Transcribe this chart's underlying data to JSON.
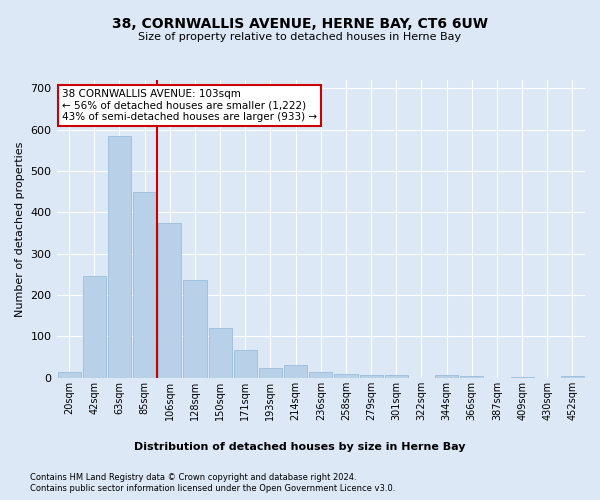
{
  "title": "38, CORNWALLIS AVENUE, HERNE BAY, CT6 6UW",
  "subtitle": "Size of property relative to detached houses in Herne Bay",
  "xlabel": "Distribution of detached houses by size in Herne Bay",
  "ylabel": "Number of detached properties",
  "footer1": "Contains HM Land Registry data © Crown copyright and database right 2024.",
  "footer2": "Contains public sector information licensed under the Open Government Licence v3.0.",
  "annotation_line1": "38 CORNWALLIS AVENUE: 103sqm",
  "annotation_line2": "← 56% of detached houses are smaller (1,222)",
  "annotation_line3": "43% of semi-detached houses are larger (933) →",
  "categories": [
    "20sqm",
    "42sqm",
    "63sqm",
    "85sqm",
    "106sqm",
    "128sqm",
    "150sqm",
    "171sqm",
    "193sqm",
    "214sqm",
    "236sqm",
    "258sqm",
    "279sqm",
    "301sqm",
    "322sqm",
    "344sqm",
    "366sqm",
    "387sqm",
    "409sqm",
    "430sqm",
    "452sqm"
  ],
  "values": [
    15,
    247,
    585,
    450,
    375,
    236,
    120,
    68,
    24,
    32,
    13,
    10,
    7,
    7,
    0,
    7,
    5,
    0,
    3,
    0,
    5
  ],
  "bar_color": "#b8d0e8",
  "bar_edge_color": "#90b8d8",
  "vline_color": "#cc0000",
  "vline_x_index": 3.5,
  "annotation_box_color": "#ffffff",
  "annotation_box_edge": "#cc0000",
  "background_color": "#dce8f5",
  "plot_bg_color": "#dce8f5",
  "grid_color": "#ffffff",
  "ylim": [
    0,
    720
  ],
  "yticks": [
    0,
    100,
    200,
    300,
    400,
    500,
    600,
    700
  ]
}
